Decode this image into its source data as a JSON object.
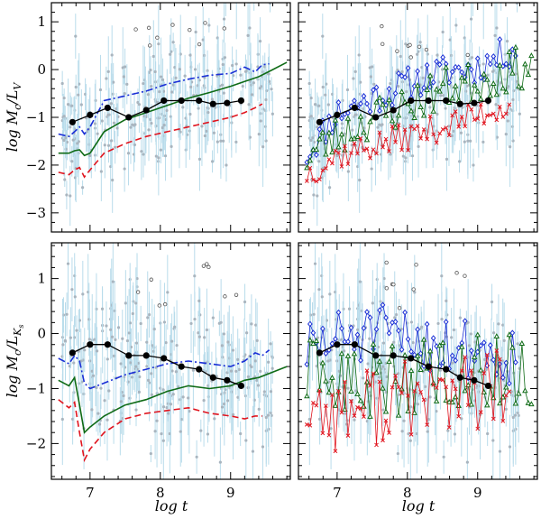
{
  "colors": {
    "blue_model": "#1a2fd6",
    "green_model": "#0f6b16",
    "red_model": "#e0141e",
    "scatter_error": "#b9dceb",
    "scatter_point": "#a9b5bf",
    "observed": "#000000"
  },
  "chart_data": [
    {
      "id": "tl",
      "type": "scatter",
      "title": "",
      "xlabel": "",
      "ylabel": "log M_c/L_V",
      "xlim": [
        6.45,
        9.85
      ],
      "ylim": [
        -3.4,
        1.4
      ],
      "xticks": [
        7,
        8,
        9
      ],
      "xtick_labels": [
        "",
        "",
        ""
      ],
      "yticks": [
        -3,
        -2,
        -1,
        0,
        1
      ],
      "ytick_labels": [
        "−3",
        "−2",
        "−1",
        "0",
        "1"
      ],
      "observed_binned": {
        "x": [
          6.75,
          7.0,
          7.25,
          7.55,
          7.8,
          8.05,
          8.3,
          8.55,
          8.75,
          8.95,
          9.15
        ],
        "y": [
          -1.1,
          -0.95,
          -0.8,
          -1.0,
          -0.85,
          -0.65,
          -0.65,
          -0.65,
          -0.72,
          -0.7,
          -0.65
        ]
      },
      "series": [
        {
          "name": "blue dash-dot",
          "style": "dashdot",
          "color": "#1a2fd6",
          "x": [
            6.55,
            6.7,
            6.78,
            6.85,
            6.92,
            7.0,
            7.2,
            7.5,
            7.8,
            8.1,
            8.4,
            8.7,
            9.0,
            9.2,
            9.35,
            9.45,
            9.55
          ],
          "y": [
            -1.35,
            -1.4,
            -1.3,
            -1.2,
            -1.35,
            -1.2,
            -0.65,
            -0.55,
            -0.45,
            -0.3,
            -0.2,
            -0.12,
            -0.08,
            0.05,
            -0.05,
            0.1,
            0.12
          ]
        },
        {
          "name": "green solid",
          "style": "solid",
          "color": "#0f6b16",
          "x": [
            6.55,
            6.7,
            6.78,
            6.85,
            6.92,
            7.0,
            7.2,
            7.5,
            7.8,
            8.1,
            8.4,
            8.7,
            9.0,
            9.2,
            9.4,
            9.6,
            9.8
          ],
          "y": [
            -1.75,
            -1.75,
            -1.7,
            -1.68,
            -1.8,
            -1.75,
            -1.3,
            -1.05,
            -0.9,
            -0.75,
            -0.6,
            -0.48,
            -0.35,
            -0.25,
            -0.15,
            0.0,
            0.15
          ]
        },
        {
          "name": "red dashed",
          "style": "dashed",
          "color": "#e0141e",
          "x": [
            6.55,
            6.7,
            6.78,
            6.85,
            6.92,
            7.0,
            7.2,
            7.5,
            7.8,
            8.1,
            8.4,
            8.7,
            9.0,
            9.2,
            9.35,
            9.45
          ],
          "y": [
            -2.15,
            -2.2,
            -2.1,
            -2.05,
            -2.25,
            -2.1,
            -1.75,
            -1.55,
            -1.4,
            -1.3,
            -1.2,
            -1.1,
            -1.0,
            -0.9,
            -0.8,
            -0.72
          ]
        }
      ]
    },
    {
      "id": "tr",
      "type": "scatter",
      "title": "",
      "xlabel": "",
      "ylabel": "",
      "xlim": [
        6.45,
        9.85
      ],
      "ylim": [
        -3.4,
        1.4
      ],
      "xticks": [
        7,
        8,
        9
      ],
      "xtick_labels": [
        "",
        "",
        ""
      ],
      "yticks": [
        -3,
        -2,
        -1,
        0,
        1
      ],
      "ytick_labels": [
        "",
        "",
        "",
        "",
        ""
      ],
      "observed_binned": {
        "x": [
          6.75,
          7.0,
          7.25,
          7.55,
          7.8,
          8.05,
          8.3,
          8.55,
          8.75,
          8.95,
          9.15
        ],
        "y": [
          -1.1,
          -0.95,
          -0.8,
          -1.0,
          -0.85,
          -0.65,
          -0.65,
          -0.65,
          -0.72,
          -0.7,
          -0.65
        ]
      },
      "series": [
        {
          "name": "blue diamonds",
          "style": "marker-diamond",
          "color": "#1a2fd6",
          "seed": 11,
          "base": [
            [
              6.55,
              -1.8
            ],
            [
              7.0,
              -0.9
            ],
            [
              7.5,
              -0.6
            ],
            [
              8.0,
              -0.3
            ],
            [
              8.5,
              -0.05
            ],
            [
              9.0,
              0.05
            ],
            [
              9.4,
              0.35
            ],
            [
              9.55,
              0.45
            ]
          ],
          "amp": 0.35
        },
        {
          "name": "green triangles",
          "style": "marker-triangle",
          "color": "#0f6b16",
          "seed": 23,
          "base": [
            [
              6.55,
              -1.85
            ],
            [
              7.0,
              -1.4
            ],
            [
              7.5,
              -1.0
            ],
            [
              8.0,
              -0.75
            ],
            [
              8.5,
              -0.4
            ],
            [
              9.0,
              -0.25
            ],
            [
              9.5,
              0.0
            ],
            [
              9.8,
              0.1
            ]
          ],
          "amp": 0.45
        },
        {
          "name": "red crosses",
          "style": "marker-cross",
          "color": "#e0141e",
          "seed": 37,
          "base": [
            [
              6.55,
              -2.2
            ],
            [
              7.0,
              -1.8
            ],
            [
              7.5,
              -1.6
            ],
            [
              8.0,
              -1.4
            ],
            [
              8.5,
              -1.2
            ],
            [
              9.0,
              -0.95
            ],
            [
              9.4,
              -0.75
            ],
            [
              9.45,
              -0.72
            ]
          ],
          "amp": 0.3
        }
      ]
    },
    {
      "id": "bl",
      "type": "scatter",
      "title": "",
      "xlabel": "log t",
      "ylabel": "log M_c/L_Ks",
      "xlim": [
        6.45,
        9.85
      ],
      "ylim": [
        -2.65,
        1.65
      ],
      "xticks": [
        7,
        8,
        9
      ],
      "xtick_labels": [
        "7",
        "8",
        "9"
      ],
      "yticks": [
        -2,
        -1,
        0,
        1
      ],
      "ytick_labels": [
        "−2",
        "−1",
        "0",
        "1"
      ],
      "observed_binned": {
        "x": [
          6.75,
          7.0,
          7.25,
          7.55,
          7.8,
          8.05,
          8.3,
          8.55,
          8.75,
          8.95,
          9.15
        ],
        "y": [
          -0.35,
          -0.2,
          -0.2,
          -0.4,
          -0.4,
          -0.45,
          -0.6,
          -0.65,
          -0.8,
          -0.85,
          -0.95
        ]
      },
      "series": [
        {
          "name": "blue dash-dot",
          "style": "dashdot",
          "color": "#1a2fd6",
          "x": [
            6.55,
            6.7,
            6.78,
            6.85,
            6.92,
            7.0,
            7.2,
            7.5,
            7.8,
            8.1,
            8.4,
            8.7,
            9.0,
            9.2,
            9.35,
            9.45,
            9.55
          ],
          "y": [
            -0.45,
            -0.55,
            -0.4,
            -0.5,
            -0.9,
            -1.0,
            -0.9,
            -0.75,
            -0.65,
            -0.55,
            -0.5,
            -0.55,
            -0.6,
            -0.5,
            -0.35,
            -0.4,
            -0.3
          ]
        },
        {
          "name": "green solid",
          "style": "solid",
          "color": "#0f6b16",
          "x": [
            6.55,
            6.7,
            6.78,
            6.85,
            6.92,
            7.0,
            7.2,
            7.5,
            7.8,
            8.1,
            8.4,
            8.7,
            9.0,
            9.2,
            9.4,
            9.6,
            9.8
          ],
          "y": [
            -0.85,
            -0.95,
            -0.8,
            -1.3,
            -1.8,
            -1.7,
            -1.5,
            -1.3,
            -1.2,
            -1.05,
            -0.95,
            -1.0,
            -0.95,
            -0.85,
            -0.8,
            -0.7,
            -0.6
          ]
        },
        {
          "name": "red dashed",
          "style": "dashed",
          "color": "#e0141e",
          "x": [
            6.55,
            6.7,
            6.78,
            6.85,
            6.92,
            7.0,
            7.2,
            7.5,
            7.8,
            8.1,
            8.4,
            8.7,
            9.0,
            9.2,
            9.35,
            9.45
          ],
          "y": [
            -1.2,
            -1.35,
            -1.25,
            -1.8,
            -2.3,
            -2.1,
            -1.8,
            -1.55,
            -1.45,
            -1.4,
            -1.35,
            -1.45,
            -1.5,
            -1.55,
            -1.5,
            -1.5
          ]
        }
      ]
    },
    {
      "id": "br",
      "type": "scatter",
      "title": "",
      "xlabel": "log t",
      "ylabel": "",
      "xlim": [
        6.45,
        9.85
      ],
      "ylim": [
        -2.65,
        1.65
      ],
      "xticks": [
        7,
        8,
        9
      ],
      "xtick_labels": [
        "7",
        "8",
        "9"
      ],
      "yticks": [
        -2,
        -1,
        0,
        1
      ],
      "ytick_labels": [
        "",
        "",
        "",
        ""
      ],
      "observed_binned": {
        "x": [
          6.75,
          7.0,
          7.25,
          7.55,
          7.8,
          8.05,
          8.3,
          8.55,
          8.75,
          8.95,
          9.15
        ],
        "y": [
          -0.35,
          -0.2,
          -0.2,
          -0.4,
          -0.4,
          -0.45,
          -0.6,
          -0.65,
          -0.8,
          -0.85,
          -0.95
        ]
      },
      "series": [
        {
          "name": "blue diamonds",
          "style": "marker-diamond",
          "color": "#1a2fd6",
          "seed": 51,
          "base": [
            [
              6.55,
              -0.3
            ],
            [
              7.0,
              -0.1
            ],
            [
              7.5,
              0.0
            ],
            [
              8.0,
              -0.1
            ],
            [
              8.5,
              -0.2
            ],
            [
              9.0,
              -0.3
            ],
            [
              9.4,
              -0.4
            ],
            [
              9.55,
              -0.35
            ]
          ],
          "amp": 0.55
        },
        {
          "name": "green triangles",
          "style": "marker-triangle",
          "color": "#0f6b16",
          "seed": 63,
          "base": [
            [
              6.55,
              -0.8
            ],
            [
              7.0,
              -0.9
            ],
            [
              7.5,
              -0.9
            ],
            [
              8.0,
              -0.8
            ],
            [
              8.5,
              -0.7
            ],
            [
              9.0,
              -0.7
            ],
            [
              9.5,
              -0.6
            ],
            [
              9.8,
              -1.1
            ]
          ],
          "amp": 0.7
        },
        {
          "name": "red crosses",
          "style": "marker-cross",
          "color": "#e0141e",
          "seed": 77,
          "base": [
            [
              6.55,
              -1.3
            ],
            [
              7.0,
              -1.4
            ],
            [
              7.5,
              -1.3
            ],
            [
              8.0,
              -1.2
            ],
            [
              8.5,
              -1.1
            ],
            [
              9.0,
              -1.1
            ],
            [
              9.4,
              -1.0
            ],
            [
              9.45,
              -1.0
            ]
          ],
          "amp": 0.75
        }
      ]
    }
  ]
}
